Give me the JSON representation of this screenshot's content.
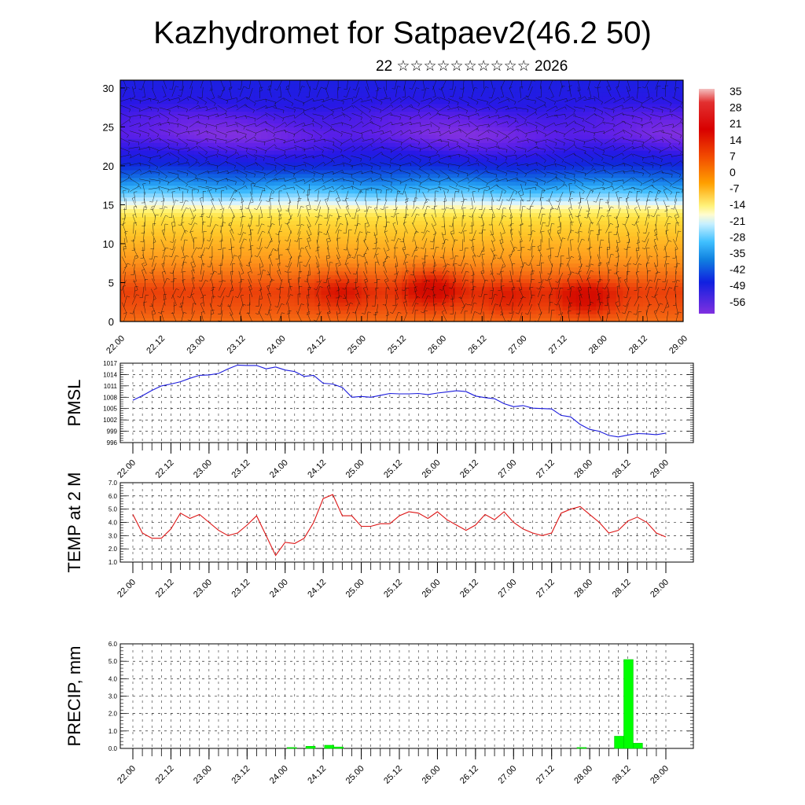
{
  "title": "Kazhydromet for Satpaev2(46.2 50)",
  "subtitle": "22 ☆☆☆☆☆☆☆☆☆☆ 2026",
  "chart_data": [
    {
      "type": "heatmap",
      "title": "",
      "xlabel": "",
      "ylabel": "",
      "x_tick_labels": [
        "22.00",
        "22.12",
        "23.00",
        "23.12",
        "24.00",
        "24.12",
        "25.00",
        "25.12",
        "26.00",
        "26.12",
        "27.00",
        "27.12",
        "28.00",
        "28.12",
        "29.00"
      ],
      "y_ticks": [
        0,
        5,
        10,
        15,
        20,
        25,
        30
      ],
      "ylim": [
        0,
        31
      ],
      "colorbar": {
        "labels": [
          "35",
          "28",
          "21",
          "14",
          "7",
          "0",
          "-7",
          "-14",
          "-21",
          "-28",
          "-35",
          "-42",
          "-49",
          "-56"
        ],
        "range": [
          -60,
          38
        ]
      },
      "temperature_profile": {
        "height": [
          0,
          2,
          4,
          6,
          8,
          10,
          12,
          13.5,
          15,
          16.5,
          18,
          20,
          22,
          24,
          26,
          28,
          31
        ],
        "value": [
          14,
          18,
          20,
          14,
          9,
          5,
          0,
          -5,
          -14,
          -24,
          -34,
          -44,
          -52,
          -58,
          -55,
          -50,
          -47
        ]
      },
      "warm_cores": [
        {
          "time": 66,
          "height": 4,
          "delta": 6
        },
        {
          "time": 93,
          "height": 4.5,
          "delta": 10
        },
        {
          "time": 116,
          "height": 3,
          "delta": 5
        },
        {
          "time": 139,
          "height": 3,
          "delta": 9
        }
      ],
      "overlay": "wind barbs"
    },
    {
      "type": "line",
      "ylabel": "PMSL",
      "y_tick_labels": [
        "1017",
        "1014",
        "1011",
        "1008",
        "1005",
        "1002",
        "999",
        "996"
      ],
      "ylim": [
        996,
        1017
      ],
      "grid": true,
      "color": "#1a1adc",
      "x_tick_labels": [
        "22.00",
        "22.12",
        "23.00",
        "23.12",
        "24.00",
        "24.12",
        "25.00",
        "25.12",
        "26.00",
        "26.12",
        "27.00",
        "27.12",
        "28.00",
        "28.12",
        "29.00"
      ],
      "series": [
        {
          "values": [
            1007.2,
            1008.4,
            1009.8,
            1011.0,
            1011.5,
            1012.1,
            1013.0,
            1013.8,
            1013.9,
            1014.3,
            1015.5,
            1016.5,
            1016.4,
            1016.4,
            1015.5,
            1016.0,
            1015.2,
            1014.8,
            1013.5,
            1013.8,
            1011.7,
            1011.5,
            1010.6,
            1008.0,
            1008.2,
            1008.0,
            1008.5,
            1009.0,
            1008.9,
            1008.9,
            1009.0,
            1008.7,
            1009.1,
            1009.4,
            1009.7,
            1009.5,
            1008.3,
            1007.9,
            1007.6,
            1006.3,
            1005.5,
            1005.8,
            1005.1,
            1005.0,
            1004.9,
            1003.2,
            1002.8,
            1000.8,
            999.5,
            999.0,
            997.9,
            997.5,
            998.0,
            998.4,
            998.3,
            998.1,
            998.5
          ]
        }
      ]
    },
    {
      "type": "line",
      "ylabel": "TEMP at 2 M",
      "y_tick_labels": [
        "7.0",
        "6.0",
        "5.0",
        "4.0",
        "3.0",
        "2.0",
        "1.0"
      ],
      "ylim": [
        1.0,
        7.0
      ],
      "grid": true,
      "color": "#dc1414",
      "x_tick_labels": [
        "22.00",
        "22.12",
        "23.00",
        "23.12",
        "24.00",
        "24.12",
        "25.00",
        "25.12",
        "26.00",
        "26.12",
        "27.00",
        "27.12",
        "28.00",
        "28.12",
        "29.00"
      ],
      "series": [
        {
          "values": [
            4.6,
            3.2,
            2.8,
            2.8,
            3.5,
            4.7,
            4.3,
            4.6,
            4.0,
            3.4,
            3.0,
            3.2,
            3.8,
            4.5,
            3.0,
            1.5,
            2.5,
            2.4,
            2.8,
            4.0,
            5.8,
            6.1,
            4.5,
            4.5,
            3.7,
            3.7,
            3.9,
            3.9,
            4.5,
            4.8,
            4.7,
            4.3,
            4.8,
            4.2,
            3.8,
            3.4,
            3.8,
            4.6,
            4.2,
            4.8,
            4.0,
            3.5,
            3.2,
            3.0,
            3.2,
            4.7,
            5.0,
            5.2,
            4.6,
            4.0,
            3.2,
            3.4,
            4.1,
            4.4,
            4.0,
            3.2,
            2.9
          ]
        }
      ]
    },
    {
      "type": "bar",
      "ylabel": "PRECIP, mm",
      "y_tick_labels": [
        "6.0",
        "5.0",
        "4.0",
        "3.0",
        "2.0",
        "1.0",
        "0.0"
      ],
      "ylim": [
        0,
        6.0
      ],
      "grid": true,
      "color": "#00ff00",
      "x_tick_labels": [
        "22.00",
        "22.12",
        "23.00",
        "23.12",
        "24.00",
        "24.12",
        "25.00",
        "25.12",
        "26.00",
        "26.12",
        "27.00",
        "27.12",
        "28.00",
        "28.12",
        "29.00"
      ],
      "series": [
        {
          "values": [
            0,
            0,
            0,
            0,
            0,
            0,
            0,
            0,
            0,
            0,
            0,
            0,
            0,
            0,
            0,
            0,
            0,
            0.05,
            0,
            0.12,
            0,
            0.18,
            0.08,
            0,
            0,
            0,
            0,
            0,
            0,
            0,
            0,
            0,
            0,
            0,
            0,
            0,
            0,
            0,
            0,
            0,
            0,
            0,
            0,
            0,
            0,
            0,
            0,
            0,
            0.05,
            0,
            0,
            0,
            0.7,
            5.1,
            0.3,
            0,
            0,
            0
          ]
        }
      ]
    }
  ]
}
